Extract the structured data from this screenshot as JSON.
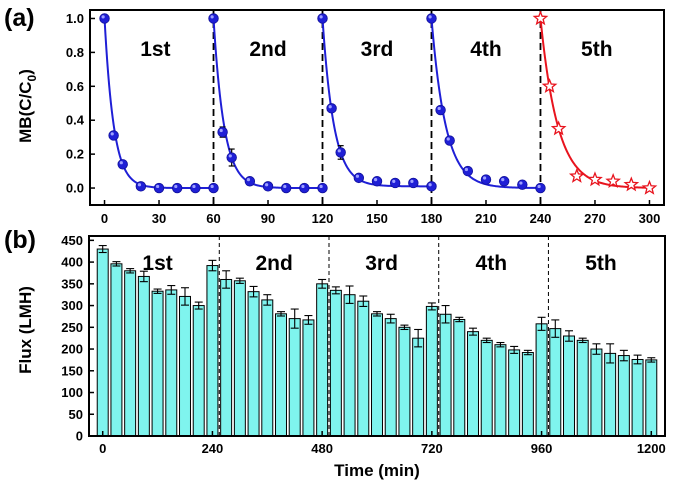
{
  "chart_data": [
    {
      "type": "scatter",
      "panel_label": "(a)",
      "ylabel": "MB(C/C",
      "ylabel_sub": "0",
      "ylabel_close": ")",
      "xlim": [
        -8,
        308
      ],
      "ylim": [
        -0.1,
        1.05
      ],
      "x_ticks": [
        0,
        30,
        60,
        90,
        120,
        150,
        180,
        210,
        240,
        270,
        300
      ],
      "y_ticks": [
        "0.0",
        "0.2",
        "0.4",
        "0.6",
        "0.8",
        "1.0"
      ],
      "y_tick_values": [
        0,
        0.2,
        0.4,
        0.6,
        0.8,
        1.0
      ],
      "dividers": [
        60,
        120,
        180,
        240
      ],
      "cycle_labels": [
        {
          "text": "1st",
          "x": 28
        },
        {
          "text": "2nd",
          "x": 90
        },
        {
          "text": "3rd",
          "x": 150
        },
        {
          "text": "4th",
          "x": 210
        },
        {
          "text": "5th",
          "x": 271
        }
      ],
      "cycle_label_y": 0.78,
      "colors": {
        "blue": "#1f1fd6",
        "red": "#e8141e"
      },
      "series": [
        {
          "name": "1st",
          "color": "#1f1fd6",
          "marker": "sphere",
          "x": [
            0,
            5,
            10,
            20,
            30,
            40,
            50,
            60
          ],
          "y": [
            1.0,
            0.31,
            0.14,
            0.01,
            0.0,
            0.0,
            0.0,
            0.0
          ],
          "err": [
            0,
            0.02,
            0,
            0,
            0,
            0,
            0,
            0
          ]
        },
        {
          "name": "2nd",
          "color": "#1f1fd6",
          "marker": "sphere",
          "x": [
            60,
            65,
            70,
            80,
            90,
            100,
            110,
            120
          ],
          "y": [
            1.0,
            0.33,
            0.18,
            0.04,
            0.01,
            0.0,
            0.0,
            0.0
          ],
          "err": [
            0,
            0.03,
            0.05,
            0,
            0,
            0,
            0,
            0
          ]
        },
        {
          "name": "3rd",
          "color": "#1f1fd6",
          "marker": "sphere",
          "x": [
            120,
            125,
            130,
            140,
            150,
            160,
            170,
            180
          ],
          "y": [
            1.0,
            0.47,
            0.21,
            0.06,
            0.04,
            0.03,
            0.03,
            0.01
          ],
          "err": [
            0,
            0.02,
            0.04,
            0,
            0,
            0,
            0,
            0
          ]
        },
        {
          "name": "4th",
          "color": "#1f1fd6",
          "marker": "sphere",
          "x": [
            180,
            185,
            190,
            200,
            210,
            220,
            230,
            240
          ],
          "y": [
            1.0,
            0.46,
            0.28,
            0.1,
            0.05,
            0.04,
            0.02,
            0.0
          ],
          "err": [
            0,
            0,
            0,
            0,
            0,
            0,
            0,
            0
          ]
        },
        {
          "name": "5th",
          "color": "#e8141e",
          "marker": "star",
          "x": [
            240,
            245,
            250,
            260,
            270,
            280,
            290,
            300
          ],
          "y": [
            1.0,
            0.6,
            0.35,
            0.07,
            0.05,
            0.04,
            0.02,
            0.0
          ],
          "err": [
            0,
            0,
            0,
            0,
            0,
            0,
            0,
            0
          ]
        }
      ]
    },
    {
      "type": "bar",
      "panel_label": "(b)",
      "ylabel": "Flux (LMH)",
      "xlabel": "Time (min)",
      "xlim": [
        -30,
        1230
      ],
      "ylim": [
        0,
        460
      ],
      "x_ticks": [
        0,
        240,
        480,
        720,
        960,
        1200
      ],
      "y_ticks": [
        0,
        50,
        100,
        150,
        200,
        250,
        300,
        350,
        400,
        450
      ],
      "dividers": [
        255,
        495,
        735,
        975
      ],
      "cycle_labels": [
        {
          "text": "1st",
          "x": 120
        },
        {
          "text": "2nd",
          "x": 375
        },
        {
          "text": "3rd",
          "x": 610
        },
        {
          "text": "4th",
          "x": 850
        },
        {
          "text": "5th",
          "x": 1090
        }
      ],
      "cycle_label_y": 400,
      "bar_color": "#7ff4ee",
      "bar_width": 24,
      "x": [
        0,
        30,
        60,
        90,
        120,
        150,
        180,
        210,
        240,
        270,
        300,
        330,
        360,
        390,
        420,
        450,
        480,
        510,
        540,
        570,
        600,
        630,
        660,
        690,
        720,
        750,
        780,
        810,
        840,
        870,
        900,
        930,
        960,
        990,
        1020,
        1050,
        1080,
        1110,
        1140,
        1170,
        1200
      ],
      "values": [
        430,
        396,
        380,
        367,
        333,
        336,
        321,
        300,
        392,
        360,
        357,
        332,
        313,
        281,
        270,
        267,
        350,
        335,
        325,
        310,
        281,
        270,
        250,
        225,
        298,
        280,
        268,
        240,
        220,
        210,
        198,
        192,
        258,
        247,
        230,
        220,
        200,
        190,
        185,
        176,
        175
      ],
      "errors": [
        8,
        5,
        5,
        12,
        5,
        10,
        20,
        8,
        12,
        20,
        6,
        12,
        12,
        5,
        22,
        10,
        10,
        8,
        20,
        12,
        5,
        10,
        5,
        20,
        8,
        20,
        5,
        8,
        5,
        5,
        8,
        5,
        15,
        20,
        12,
        5,
        12,
        22,
        12,
        10,
        5
      ]
    }
  ]
}
